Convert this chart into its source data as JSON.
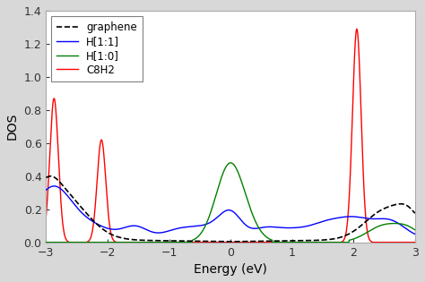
{
  "title": "",
  "xlabel": "Energy (eV)",
  "ylabel": "DOS",
  "xlim": [
    -3,
    3
  ],
  "ylim": [
    0,
    1.4
  ],
  "yticks": [
    0.0,
    0.2,
    0.4,
    0.6,
    0.8,
    1.0,
    1.2,
    1.4
  ],
  "xticks": [
    -3,
    -2,
    -1,
    0,
    1,
    2,
    3
  ],
  "legend_labels": [
    "graphene",
    "H[1:1]",
    "H[1:0]",
    "C8H2"
  ],
  "line_colors": [
    "black",
    "blue",
    "green",
    "red"
  ],
  "line_styles": [
    "--",
    "-",
    "-",
    "-"
  ],
  "background_color": "#ffffff",
  "fig_bg_color": "#d8d8d8",
  "figsize": [
    4.74,
    3.15
  ],
  "dpi": 100
}
